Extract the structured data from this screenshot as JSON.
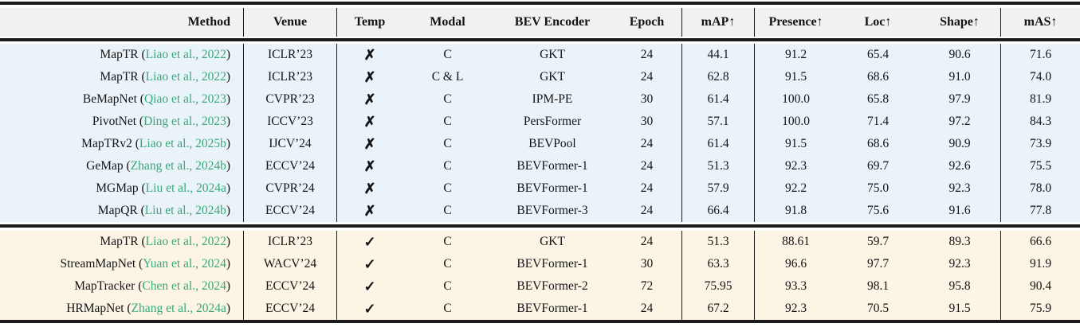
{
  "colors": {
    "citation_green": "#3aa878",
    "group_non_temporal_bg": "#eaf3fa",
    "group_temporal_bg": "#fcf5e6",
    "header_bg": "#f1f1f1",
    "rule_color": "#1b1b1b"
  },
  "icons": {
    "cross": "✗",
    "check": "✓"
  },
  "table": {
    "columns": [
      {
        "key": "method",
        "label": "Method"
      },
      {
        "key": "venue",
        "label": "Venue"
      },
      {
        "key": "temp",
        "label": "Temp"
      },
      {
        "key": "modal",
        "label": "Modal"
      },
      {
        "key": "bev",
        "label": "BEV Encoder"
      },
      {
        "key": "epoch",
        "label": "Epoch"
      },
      {
        "key": "map",
        "label": "mAP↑"
      },
      {
        "key": "presence",
        "label": "Presence↑"
      },
      {
        "key": "loc",
        "label": "Loc↑"
      },
      {
        "key": "shape",
        "label": "Shape↑"
      },
      {
        "key": "mas",
        "label": "mAS↑"
      }
    ],
    "groups": [
      {
        "name": "non-temporal",
        "bg": "#eaf3fa",
        "rows": [
          {
            "method": "MapTR",
            "citation": "Liao et al., 2022",
            "venue": "ICLR’23",
            "temp": "✗",
            "modal": "C",
            "bev": "GKT",
            "epoch": "24",
            "map": "44.1",
            "presence": "91.2",
            "loc": "65.4",
            "shape": "90.6",
            "mas": "71.6"
          },
          {
            "method": "MapTR",
            "citation": "Liao et al., 2022",
            "venue": "ICLR’23",
            "temp": "✗",
            "modal": "C & L",
            "bev": "GKT",
            "epoch": "24",
            "map": "62.8",
            "presence": "91.5",
            "loc": "68.6",
            "shape": "91.0",
            "mas": "74.0"
          },
          {
            "method": "BeMapNet",
            "citation": "Qiao et al., 2023",
            "venue": "CVPR’23",
            "temp": "✗",
            "modal": "C",
            "bev": "IPM-PE",
            "epoch": "30",
            "map": "61.4",
            "presence": "100.0",
            "loc": "65.8",
            "shape": "97.9",
            "mas": "81.9"
          },
          {
            "method": "PivotNet",
            "citation": "Ding et al., 2023",
            "venue": "ICCV’23",
            "temp": "✗",
            "modal": "C",
            "bev": "PersFormer",
            "epoch": "30",
            "map": "57.1",
            "presence": "100.0",
            "loc": "71.4",
            "shape": "97.2",
            "mas": "84.3"
          },
          {
            "method": "MapTRv2",
            "citation": "Liao et al., 2025b",
            "venue": "IJCV’24",
            "temp": "✗",
            "modal": "C",
            "bev": "BEVPool",
            "epoch": "24",
            "map": "61.4",
            "presence": "91.5",
            "loc": "68.6",
            "shape": "90.9",
            "mas": "73.9"
          },
          {
            "method": "GeMap",
            "citation": "Zhang et al., 2024b",
            "venue": "ECCV’24",
            "temp": "✗",
            "modal": "C",
            "bev": "BEVFormer-1",
            "epoch": "24",
            "map": "51.3",
            "presence": "92.3",
            "loc": "69.7",
            "shape": "92.6",
            "mas": "75.5"
          },
          {
            "method": "MGMap",
            "citation": "Liu et al., 2024a",
            "venue": "CVPR’24",
            "temp": "✗",
            "modal": "C",
            "bev": "BEVFormer-1",
            "epoch": "24",
            "map": "57.9",
            "presence": "92.2",
            "loc": "75.0",
            "shape": "92.3",
            "mas": "78.0"
          },
          {
            "method": "MapQR",
            "citation": "Liu et al., 2024b",
            "venue": "ECCV’24",
            "temp": "✗",
            "modal": "C",
            "bev": "BEVFormer-3",
            "epoch": "24",
            "map": "66.4",
            "presence": "91.8",
            "loc": "75.6",
            "shape": "91.6",
            "mas": "77.8"
          }
        ]
      },
      {
        "name": "temporal",
        "bg": "#fcf5e6",
        "rows": [
          {
            "method": "MapTR",
            "citation": "Liao et al., 2022",
            "venue": "ICLR’23",
            "temp": "✓",
            "modal": "C",
            "bev": "GKT",
            "epoch": "24",
            "map": "51.3",
            "presence": "88.61",
            "loc": "59.7",
            "shape": "89.3",
            "mas": "66.6"
          },
          {
            "method": "StreamMapNet",
            "citation": "Yuan et al., 2024",
            "venue": "WACV’24",
            "temp": "✓",
            "modal": "C",
            "bev": "BEVFormer-1",
            "epoch": "30",
            "map": "63.3",
            "presence": "96.6",
            "loc": "97.7",
            "shape": "92.3",
            "mas": "91.9"
          },
          {
            "method": "MapTracker",
            "citation": "Chen et al., 2024",
            "venue": "ECCV’24",
            "temp": "✓",
            "modal": "C",
            "bev": "BEVFormer-2",
            "epoch": "72",
            "map": "75.95",
            "presence": "93.3",
            "loc": "98.1",
            "shape": "95.8",
            "mas": "90.4"
          },
          {
            "method": "HRMapNet",
            "citation": "Zhang et al., 2024a",
            "venue": "ECCV’24",
            "temp": "✓",
            "modal": "C",
            "bev": "BEVFormer-1",
            "epoch": "24",
            "map": "67.2",
            "presence": "92.3",
            "loc": "70.5",
            "shape": "91.5",
            "mas": "75.9"
          }
        ]
      }
    ]
  }
}
